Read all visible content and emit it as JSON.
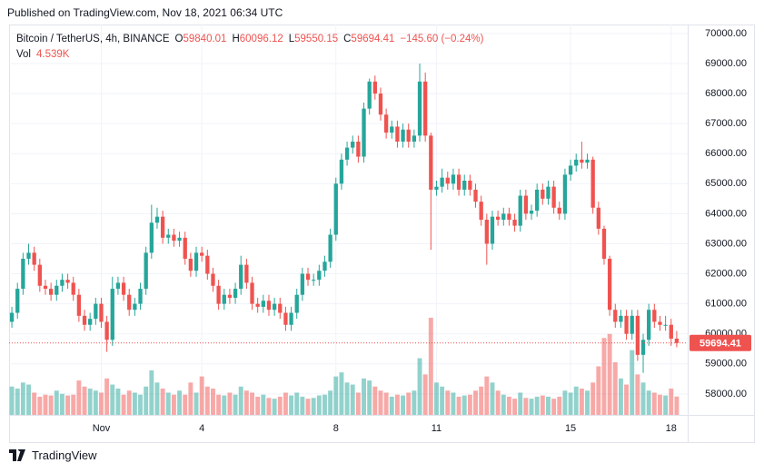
{
  "published": "Published on TradingView.com, Nov 18, 2021 06:34 UTC",
  "footer": "TradingView",
  "chart_data": {
    "type": "candlestick",
    "legend": {
      "symbol": "Bitcoin / TetherUS, 4h, BINANCE",
      "open_key": "O",
      "high_key": "H",
      "low_key": "L",
      "close_key": "C",
      "change": "−145.60 (−0.24%)",
      "vol_key": "Vol",
      "vol_label": "4.539K"
    },
    "up_color": "#26a69a",
    "down_color": "#ef5350",
    "open": [
      60400,
      60700,
      61500,
      62500,
      62700,
      62300,
      61600,
      61500,
      61300,
      61600,
      61800,
      61700,
      61300,
      60600,
      60300,
      60500,
      61000,
      60400,
      59800,
      61500,
      61700,
      61300,
      60800,
      61000,
      61500,
      62700,
      63700,
      63900,
      63200,
      63300,
      63100,
      63200,
      62500,
      62100,
      62700,
      62600,
      62000,
      61600,
      61000,
      61300,
      61200,
      61500,
      62300,
      61700,
      61000,
      60900,
      61100,
      60800,
      61000,
      60700,
      60300,
      60700,
      61300,
      62000,
      61800,
      61800,
      62100,
      62400,
      63300,
      65000,
      65800,
      66200,
      66400,
      65900,
      67500,
      68400,
      68000,
      67300,
      66700,
      66900,
      66400,
      66800,
      66400,
      66600,
      68400,
      66600,
      64800,
      64900,
      65200,
      65000,
      65300,
      64800,
      65100,
      64800,
      64400,
      63800,
      63000,
      63900,
      63800,
      64000,
      63800,
      63600,
      64600,
      64000,
      64100,
      64800,
      64500,
      64900,
      64200,
      64000,
      65300,
      65600,
      65800,
      65700,
      65800,
      64200,
      63500,
      62500,
      60800,
      60400,
      60600,
      60000,
      60600,
      59300,
      59800,
      60800,
      60400,
      60300,
      60300,
      59840.01
    ],
    "high": [
      60900,
      61700,
      62700,
      63000,
      62900,
      62500,
      61800,
      61700,
      61800,
      62000,
      62000,
      61900,
      61500,
      60800,
      60700,
      61200,
      61200,
      60600,
      61900,
      61900,
      61900,
      61500,
      61200,
      61700,
      62900,
      64300,
      64200,
      64100,
      63500,
      63500,
      63400,
      63400,
      62700,
      62900,
      62900,
      62800,
      62200,
      61800,
      61500,
      61500,
      61700,
      62600,
      62500,
      61900,
      61200,
      61300,
      61300,
      61200,
      61200,
      60900,
      60900,
      61500,
      62200,
      62200,
      62000,
      62300,
      62600,
      63500,
      65200,
      66000,
      66400,
      66600,
      66600,
      67700,
      68500,
      68600,
      68200,
      67500,
      67100,
      67100,
      67000,
      67000,
      66800,
      69000,
      68700,
      66700,
      65100,
      65500,
      65400,
      65500,
      65500,
      65300,
      65300,
      65000,
      64600,
      64000,
      64100,
      64100,
      64200,
      64200,
      64000,
      64800,
      64800,
      64300,
      65000,
      65000,
      65100,
      65100,
      64400,
      65500,
      65800,
      66000,
      66400,
      66000,
      65900,
      64400,
      63600,
      62600,
      61000,
      60800,
      60800,
      60800,
      60800,
      60000,
      61000,
      61000,
      60600,
      60600,
      60500,
      60096.12
    ],
    "low": [
      60200,
      60500,
      61300,
      62300,
      62100,
      61400,
      61300,
      61100,
      61100,
      61400,
      61500,
      61100,
      60400,
      60100,
      60100,
      60300,
      60200,
      59400,
      59600,
      61300,
      61100,
      60600,
      60600,
      60800,
      61300,
      62500,
      63500,
      63000,
      63000,
      62900,
      62900,
      62300,
      61900,
      61900,
      62400,
      61800,
      61400,
      60800,
      60800,
      61000,
      61000,
      61300,
      61500,
      60800,
      60700,
      60700,
      60600,
      60600,
      60500,
      60100,
      60100,
      60500,
      61100,
      61600,
      61600,
      61600,
      61900,
      62200,
      63100,
      64800,
      65600,
      66000,
      65700,
      65700,
      67300,
      67800,
      67100,
      66500,
      66500,
      66200,
      66200,
      66200,
      66200,
      66400,
      66400,
      62800,
      64600,
      64700,
      64800,
      64800,
      64600,
      64600,
      64600,
      64200,
      63600,
      62300,
      62800,
      63600,
      63600,
      63600,
      63400,
      63400,
      63800,
      63800,
      63900,
      64300,
      64300,
      64000,
      63800,
      63800,
      65100,
      65400,
      65500,
      65500,
      64000,
      63300,
      62300,
      60600,
      60200,
      60200,
      59800,
      59800,
      59100,
      58700,
      59600,
      60200,
      60100,
      60100,
      59600,
      59550.15
    ],
    "close": [
      60700,
      61500,
      62500,
      62700,
      62300,
      61600,
      61500,
      61300,
      61600,
      61800,
      61700,
      61300,
      60600,
      60300,
      60500,
      61000,
      60400,
      59800,
      61500,
      61700,
      61300,
      60800,
      61000,
      61500,
      62700,
      63700,
      63900,
      63200,
      63300,
      63100,
      63200,
      62500,
      62100,
      62700,
      62600,
      62000,
      61600,
      61000,
      61300,
      61200,
      61500,
      62300,
      61700,
      61000,
      60900,
      61100,
      60800,
      61000,
      60700,
      60300,
      60700,
      61300,
      62000,
      61800,
      61800,
      62100,
      62400,
      63300,
      65000,
      65800,
      66200,
      66400,
      65900,
      67500,
      68400,
      68000,
      67300,
      66700,
      66900,
      66400,
      66800,
      66400,
      66600,
      68400,
      66600,
      64800,
      64900,
      65200,
      65000,
      65300,
      64800,
      65100,
      64800,
      64400,
      63800,
      63000,
      63900,
      63800,
      64000,
      63800,
      63600,
      64600,
      64000,
      64100,
      64800,
      64500,
      64900,
      64200,
      64000,
      65300,
      65600,
      65800,
      65700,
      65800,
      64200,
      63500,
      62500,
      60800,
      60400,
      60600,
      60000,
      60600,
      59300,
      59800,
      60800,
      60400,
      60300,
      60300,
      59840.01,
      59694.41
    ],
    "volume": [
      7000,
      6500,
      8000,
      7500,
      5500,
      4500,
      5000,
      4800,
      6000,
      5200,
      4800,
      5000,
      8500,
      7000,
      6500,
      6000,
      5500,
      9000,
      7500,
      6500,
      5000,
      6000,
      5500,
      5000,
      7000,
      11000,
      8000,
      6500,
      5500,
      5000,
      6000,
      5000,
      8000,
      5500,
      9500,
      7000,
      6500,
      5000,
      4800,
      5500,
      5000,
      7000,
      6000,
      5500,
      4500,
      5000,
      4200,
      4000,
      4500,
      5500,
      4800,
      5500,
      4500,
      4000,
      4200,
      4800,
      5000,
      6000,
      9500,
      10500,
      8000,
      7500,
      5500,
      9000,
      8500,
      7000,
      6000,
      5500,
      4500,
      5000,
      4800,
      5500,
      6000,
      14000,
      10000,
      24000,
      8000,
      7000,
      6000,
      5500,
      4500,
      4800,
      5000,
      6000,
      7000,
      9500,
      8000,
      6000,
      5000,
      4500,
      4000,
      5500,
      4200,
      4000,
      4500,
      4800,
      4500,
      4000,
      4500,
      6000,
      5500,
      7000,
      6500,
      6000,
      8000,
      12000,
      19000,
      20000,
      13000,
      9000,
      7500,
      16000,
      10000,
      8000,
      6000,
      5500,
      5000,
      4800,
      6500,
      4539
    ],
    "ylim": [
      57300,
      70300
    ],
    "yticks": [
      {
        "value": 58000,
        "label": "58000.00"
      },
      {
        "value": 59000,
        "label": "59000.00"
      },
      {
        "value": 60000,
        "label": "60000.00"
      },
      {
        "value": 61000,
        "label": "61000.00"
      },
      {
        "value": 62000,
        "label": "62000.00"
      },
      {
        "value": 63000,
        "label": "63000.00"
      },
      {
        "value": 64000,
        "label": "64000.00"
      },
      {
        "value": 65000,
        "label": "65000.00"
      },
      {
        "value": 66000,
        "label": "66000.00"
      },
      {
        "value": 67000,
        "label": "67000.00"
      },
      {
        "value": 68000,
        "label": "68000.00"
      },
      {
        "value": 69000,
        "label": "69000.00"
      },
      {
        "value": 70000,
        "label": "70000.00"
      }
    ],
    "xticks": [
      {
        "value": 16,
        "label": "Nov"
      },
      {
        "value": 34,
        "label": "4"
      },
      {
        "value": 58,
        "label": "8"
      },
      {
        "value": 76,
        "label": "11"
      },
      {
        "value": 100,
        "label": "15"
      },
      {
        "value": 118,
        "label": "18"
      }
    ],
    "grid": true
  }
}
